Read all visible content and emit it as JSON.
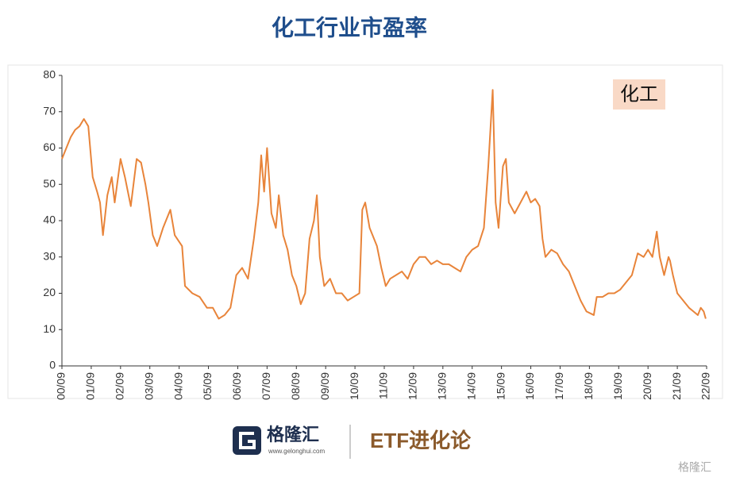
{
  "chart_data": {
    "type": "line",
    "title": "化工行业市盈率",
    "annotation": "化工",
    "xlim": [
      2000.75,
      2022.75
    ],
    "xticks": [
      {
        "value": 2000.75,
        "label": "00/09"
      },
      {
        "value": 2001.75,
        "label": "01/09"
      },
      {
        "value": 2002.75,
        "label": "02/09"
      },
      {
        "value": 2003.75,
        "label": "03/09"
      },
      {
        "value": 2004.75,
        "label": "04/09"
      },
      {
        "value": 2005.75,
        "label": "05/09"
      },
      {
        "value": 2006.75,
        "label": "06/09"
      },
      {
        "value": 2007.75,
        "label": "07/09"
      },
      {
        "value": 2008.75,
        "label": "08/09"
      },
      {
        "value": 2009.75,
        "label": "09/09"
      },
      {
        "value": 2010.75,
        "label": "10/09"
      },
      {
        "value": 2011.75,
        "label": "11/09"
      },
      {
        "value": 2012.75,
        "label": "12/09"
      },
      {
        "value": 2013.75,
        "label": "13/09"
      },
      {
        "value": 2014.75,
        "label": "14/09"
      },
      {
        "value": 2015.75,
        "label": "15/09"
      },
      {
        "value": 2016.75,
        "label": "16/09"
      },
      {
        "value": 2017.75,
        "label": "17/09"
      },
      {
        "value": 2018.75,
        "label": "18/09"
      },
      {
        "value": 2019.75,
        "label": "19/09"
      },
      {
        "value": 2020.75,
        "label": "20/09"
      },
      {
        "value": 2021.75,
        "label": "21/09"
      },
      {
        "value": 2022.75,
        "label": "22/09"
      }
    ],
    "ylim": [
      0,
      80
    ],
    "yticks": [
      0,
      10,
      20,
      30,
      40,
      50,
      60,
      70,
      80
    ],
    "x": [
      2000.75,
      2000.9,
      2001.05,
      2001.2,
      2001.35,
      2001.5,
      2001.65,
      2001.8,
      2001.95,
      2002.05,
      2002.15,
      2002.3,
      2002.45,
      2002.55,
      2002.75,
      2002.9,
      2003.0,
      2003.1,
      2003.3,
      2003.45,
      2003.6,
      2003.7,
      2003.85,
      2004.0,
      2004.2,
      2004.45,
      2004.6,
      2004.85,
      2004.95,
      2005.2,
      2005.45,
      2005.7,
      2005.9,
      2006.1,
      2006.3,
      2006.5,
      2006.7,
      2006.9,
      2007.1,
      2007.3,
      2007.45,
      2007.55,
      2007.65,
      2007.75,
      2007.9,
      2008.05,
      2008.15,
      2008.3,
      2008.45,
      2008.6,
      2008.75,
      2008.9,
      2009.05,
      2009.2,
      2009.35,
      2009.45,
      2009.55,
      2009.7,
      2009.9,
      2010.1,
      2010.3,
      2010.5,
      2010.7,
      2010.9,
      2011.0,
      2011.1,
      2011.25,
      2011.35,
      2011.5,
      2011.65,
      2011.8,
      2011.95,
      2012.15,
      2012.35,
      2012.55,
      2012.75,
      2012.95,
      2013.15,
      2013.35,
      2013.55,
      2013.75,
      2013.95,
      2014.15,
      2014.35,
      2014.55,
      2014.75,
      2014.95,
      2015.15,
      2015.3,
      2015.45,
      2015.55,
      2015.65,
      2015.8,
      2015.9,
      2016.0,
      2016.2,
      2016.4,
      2016.6,
      2016.75,
      2016.9,
      2017.05,
      2017.15,
      2017.25,
      2017.45,
      2017.65,
      2017.85,
      2018.05,
      2018.25,
      2018.45,
      2018.65,
      2018.9,
      2019.0,
      2019.2,
      2019.4,
      2019.6,
      2019.8,
      2020.0,
      2020.2,
      2020.4,
      2020.6,
      2020.75,
      2020.9,
      2021.05,
      2021.15,
      2021.3,
      2021.45,
      2021.5,
      2021.6,
      2021.75,
      2021.95,
      2022.15,
      2022.3,
      2022.45,
      2022.55,
      2022.65,
      2022.72
    ],
    "series": [
      {
        "color": "#e8843a",
        "values": [
          57,
          60,
          63,
          65,
          66,
          68,
          66,
          52,
          48,
          45,
          36,
          47,
          52,
          45,
          57,
          52,
          48,
          44,
          57,
          56,
          50,
          45,
          36,
          33,
          38,
          43,
          36,
          33,
          22,
          20,
          19,
          16,
          16,
          13,
          14,
          16,
          25,
          27,
          24,
          35,
          45,
          58,
          48,
          60,
          42,
          38,
          47,
          36,
          32,
          25,
          22,
          17,
          20,
          35,
          40,
          47,
          30,
          22,
          24,
          20,
          20,
          18,
          19,
          20,
          43,
          45,
          38,
          36,
          33,
          27,
          22,
          24,
          25,
          26,
          24,
          28,
          30,
          30,
          28,
          29,
          28,
          28,
          27,
          26,
          30,
          32,
          33,
          38,
          55,
          76,
          45,
          38,
          55,
          57,
          45,
          42,
          45,
          48,
          45,
          46,
          44,
          35,
          30,
          32,
          31,
          28,
          26,
          22,
          18,
          15,
          14,
          19,
          19,
          20,
          20,
          21,
          23,
          25,
          31,
          30,
          32,
          30,
          37,
          30,
          25,
          30,
          29,
          25,
          20,
          18,
          16,
          15,
          14,
          16,
          15,
          13
        ]
      }
    ]
  },
  "footer": {
    "brand": "格隆汇",
    "url": "www.gelonghui.com",
    "product": "ETF进化论",
    "watermark": "格隆汇"
  }
}
